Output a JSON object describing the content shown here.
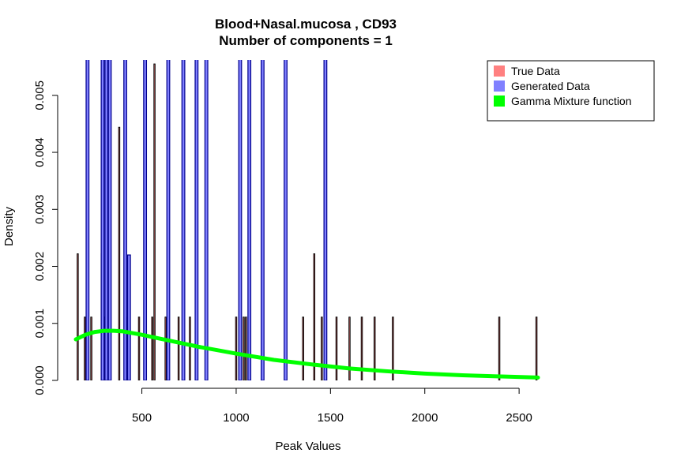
{
  "chart_data": {
    "type": "bar",
    "title": "Blood+Nasal.mucosa , CD93",
    "subtitle": "Number of components =  1",
    "xlabel": "Peak Values",
    "ylabel": "Density",
    "xlim": [
      150,
      2600
    ],
    "ylim": [
      0,
      0.0058
    ],
    "x_ticks": [
      {
        "value": 500,
        "label": "500"
      },
      {
        "value": 1000,
        "label": "1000"
      },
      {
        "value": 1500,
        "label": "1500"
      },
      {
        "value": 2000,
        "label": "2000"
      },
      {
        "value": 2500,
        "label": "2500"
      }
    ],
    "y_ticks": [
      {
        "value": 0.0,
        "label": "0.000"
      },
      {
        "value": 0.001,
        "label": "0.001"
      },
      {
        "value": 0.002,
        "label": "0.002"
      },
      {
        "value": 0.003,
        "label": "0.003"
      },
      {
        "value": 0.004,
        "label": "0.004"
      },
      {
        "value": 0.005,
        "label": "0.005"
      }
    ],
    "bin_width": 22.6,
    "legend": {
      "position": "top-right",
      "entries": [
        {
          "label": "True Data",
          "color": "#ff8080"
        },
        {
          "label": "Generated Data",
          "color": "#8080ff"
        },
        {
          "label": "Gamma Mixture function",
          "color": "#00ff00"
        }
      ]
    },
    "series": [
      {
        "name": "True Data",
        "color": "#ff8080",
        "stroke": "#000000",
        "x": [
          160,
          198,
          232,
          287,
          303,
          380,
          417,
          485,
          517,
          555,
          567,
          626,
          695,
          755,
          1000,
          1022,
          1040,
          1052,
          1355,
          1414,
          1454,
          1532,
          1601,
          1666,
          1734,
          1831,
          2395,
          2592
        ],
        "values": [
          0.00222,
          0.00111,
          0.00111,
          0.00222,
          0.00111,
          0.00444,
          0.00111,
          0.00111,
          0.00111,
          0.00111,
          0.00555,
          0.00111,
          0.00111,
          0.00111,
          0.00111,
          0.00111,
          0.00111,
          0.00111,
          0.00111,
          0.00222,
          0.00111,
          0.00111,
          0.00111,
          0.00111,
          0.00111,
          0.00111,
          0.00111,
          0.00111
        ]
      },
      {
        "name": "Generated Data",
        "color": "#8080ff",
        "stroke": "#00008b",
        "x": [
          212,
          292,
          312,
          330,
          412,
          432,
          517,
          640,
          720,
          790,
          842,
          1021,
          1070,
          1140,
          1262,
          1473
        ],
        "values": [
          0.0062,
          0.0062,
          0.0062,
          0.0062,
          0.0062,
          0.0022,
          0.0062,
          0.0062,
          0.0062,
          0.0062,
          0.0062,
          0.0062,
          0.0062,
          0.0062,
          0.0062,
          0.0062
        ]
      },
      {
        "name": "Gamma Mixture function",
        "type": "line",
        "color": "#00ff00",
        "x": [
          150,
          200,
          250,
          300,
          350,
          400,
          450,
          500,
          600,
          700,
          800,
          900,
          1000,
          1200,
          1400,
          1600,
          1800,
          2000,
          2200,
          2400,
          2600
        ],
        "values": [
          0.00072,
          0.0008,
          0.00085,
          0.00087,
          0.00087,
          0.00086,
          0.00083,
          0.0008,
          0.00073,
          0.00066,
          0.00059,
          0.00053,
          0.00047,
          0.00036,
          0.00028,
          0.00021,
          0.00016,
          0.00012,
          9e-05,
          7e-05,
          5e-05
        ]
      }
    ]
  }
}
